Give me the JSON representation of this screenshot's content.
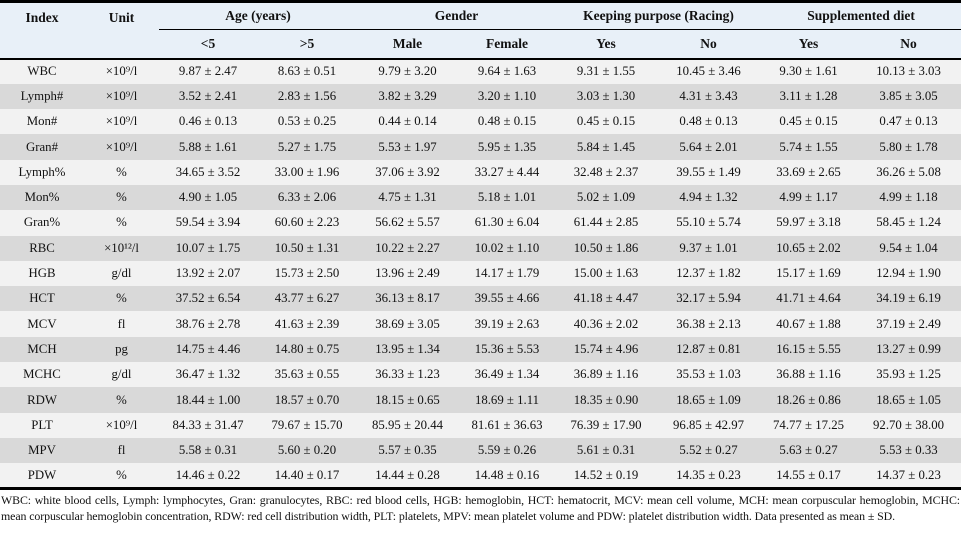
{
  "table": {
    "headers": {
      "index": "Index",
      "unit": "Unit",
      "groups": [
        {
          "label": "Age (years)",
          "sub": [
            "<5",
            ">5"
          ]
        },
        {
          "label": "Gender",
          "sub": [
            "Male",
            "Female"
          ]
        },
        {
          "label": "Keeping purpose (Racing)",
          "sub": [
            "Yes",
            "No"
          ]
        },
        {
          "label": "Supplemented diet",
          "sub": [
            "Yes",
            "No"
          ]
        }
      ]
    },
    "rows": [
      {
        "index": "WBC",
        "unit": "×10⁹/l",
        "values": [
          "9.87 ± 2.47",
          "8.63 ± 0.51",
          "9.79 ± 3.20",
          "9.64 ± 1.63",
          "9.31 ± 1.55",
          "10.45 ± 3.46",
          "9.30 ± 1.61",
          "10.13 ± 3.03"
        ]
      },
      {
        "index": "Lymph#",
        "unit": "×10⁹/l",
        "values": [
          "3.52 ± 2.41",
          "2.83 ± 1.56",
          "3.82 ± 3.29",
          "3.20 ± 1.10",
          "3.03 ± 1.30",
          "4.31 ± 3.43",
          "3.11 ± 1.28",
          "3.85 ± 3.05"
        ]
      },
      {
        "index": "Mon#",
        "unit": "×10⁹/l",
        "values": [
          "0.46 ± 0.13",
          "0.53 ± 0.25",
          "0.44 ± 0.14",
          "0.48 ± 0.15",
          "0.45 ± 0.15",
          "0.48 ± 0.13",
          "0.45 ± 0.15",
          "0.47 ± 0.13"
        ]
      },
      {
        "index": "Gran#",
        "unit": "×10⁹/l",
        "values": [
          "5.88 ± 1.61",
          "5.27 ± 1.75",
          "5.53 ± 1.97",
          "5.95 ± 1.35",
          "5.84 ± 1.45",
          "5.64 ± 2.01",
          "5.74 ± 1.55",
          "5.80 ± 1.78"
        ]
      },
      {
        "index": "Lymph%",
        "unit": "%",
        "values": [
          "34.65 ± 3.52",
          "33.00 ± 1.96",
          "37.06 ± 3.92",
          "33.27 ± 4.44",
          "32.48 ± 2.37",
          "39.55 ± 1.49",
          "33.69 ± 2.65",
          "36.26 ± 5.08"
        ]
      },
      {
        "index": "Mon%",
        "unit": "%",
        "values": [
          "4.90 ± 1.05",
          "6.33 ± 2.06",
          "4.75 ± 1.31",
          "5.18 ± 1.01",
          "5.02 ± 1.09",
          "4.94 ± 1.32",
          "4.99 ± 1.17",
          "4.99 ± 1.18"
        ]
      },
      {
        "index": "Gran%",
        "unit": "%",
        "values": [
          "59.54 ± 3.94",
          "60.60 ± 2.23",
          "56.62 ± 5.57",
          "61.30 ± 6.04",
          "61.44 ± 2.85",
          "55.10 ± 5.74",
          "59.97 ± 3.18",
          "58.45 ± 1.24"
        ]
      },
      {
        "index": "RBC",
        "unit": "×10¹²/l",
        "values": [
          "10.07 ± 1.75",
          "10.50 ± 1.31",
          "10.22 ± 2.27",
          "10.02 ± 1.10",
          "10.50 ± 1.86",
          "9.37 ± 1.01",
          "10.65 ± 2.02",
          "9.54 ± 1.04"
        ]
      },
      {
        "index": "HGB",
        "unit": "g/dl",
        "values": [
          "13.92 ± 2.07",
          "15.73 ± 2.50",
          "13.96 ± 2.49",
          "14.17 ± 1.79",
          "15.00 ± 1.63",
          "12.37 ± 1.82",
          "15.17 ± 1.69",
          "12.94 ± 1.90"
        ]
      },
      {
        "index": "HCT",
        "unit": "%",
        "values": [
          "37.52 ± 6.54",
          "43.77 ± 6.27",
          "36.13 ± 8.17",
          "39.55 ± 4.66",
          "41.18 ± 4.47",
          "32.17 ± 5.94",
          "41.71 ± 4.64",
          "34.19 ± 6.19"
        ]
      },
      {
        "index": "MCV",
        "unit": "fl",
        "values": [
          "38.76 ± 2.78",
          "41.63 ± 2.39",
          "38.69 ± 3.05",
          "39.19 ± 2.63",
          "40.36 ± 2.02",
          "36.38 ± 2.13",
          "40.67 ± 1.88",
          "37.19 ± 2.49"
        ]
      },
      {
        "index": "MCH",
        "unit": "pg",
        "values": [
          "14.75 ± 4.46",
          "14.80 ± 0.75",
          "13.95 ± 1.34",
          "15.36 ± 5.53",
          "15.74 ± 4.96",
          "12.87 ± 0.81",
          "16.15 ± 5.55",
          "13.27 ± 0.99"
        ]
      },
      {
        "index": "MCHC",
        "unit": "g/dl",
        "values": [
          "36.47 ± 1.32",
          "35.63 ± 0.55",
          "36.33 ± 1.23",
          "36.49 ± 1.34",
          "36.89 ± 1.16",
          "35.53 ± 1.03",
          "36.88 ± 1.16",
          "35.93 ± 1.25"
        ]
      },
      {
        "index": "RDW",
        "unit": "%",
        "values": [
          "18.44 ± 1.00",
          "18.57 ± 0.70",
          "18.15 ± 0.65",
          "18.69 ± 1.11",
          "18.35 ± 0.90",
          "18.65 ± 1.09",
          "18.26 ± 0.86",
          "18.65 ± 1.05"
        ]
      },
      {
        "index": "PLT",
        "unit": "×10⁹/l",
        "values": [
          "84.33 ± 31.47",
          "79.67 ± 15.70",
          "85.95 ± 20.44",
          "81.61 ± 36.63",
          "76.39 ± 17.90",
          "96.85 ± 42.97",
          "74.77 ± 17.25",
          "92.70 ± 38.00"
        ]
      },
      {
        "index": "MPV",
        "unit": "fl",
        "values": [
          "5.58 ± 0.31",
          "5.60 ± 0.20",
          "5.57 ± 0.35",
          "5.59 ± 0.26",
          "5.61 ± 0.31",
          "5.52 ± 0.27",
          "5.63 ± 0.27",
          "5.53 ± 0.33"
        ]
      },
      {
        "index": "PDW",
        "unit": "%",
        "values": [
          "14.46 ± 0.22",
          "14.40 ± 0.17",
          "14.44 ± 0.28",
          "14.48 ± 0.16",
          "14.52 ± 0.19",
          "14.35 ± 0.23",
          "14.55 ± 0.17",
          "14.37 ± 0.23"
        ]
      }
    ]
  },
  "footnote": "WBC: white blood cells, Lymph: lymphocytes, Gran: granulocytes, RBC: red blood cells, HGB: hemoglobin, HCT: hematocrit, MCV: mean cell volume, MCH: mean corpuscular hemoglobin, MCHC: mean corpuscular hemoglobin concentration, RDW: red cell distribution width, PLT: platelets, MPV: mean platelet volume and PDW: platelet distribution width. Data presented as mean ± SD.",
  "colors": {
    "header_bg": "#e8f0f8",
    "row_light": "#f2f2f2",
    "row_dark": "#d9d9d9",
    "border": "#000000",
    "text": "#111111"
  }
}
